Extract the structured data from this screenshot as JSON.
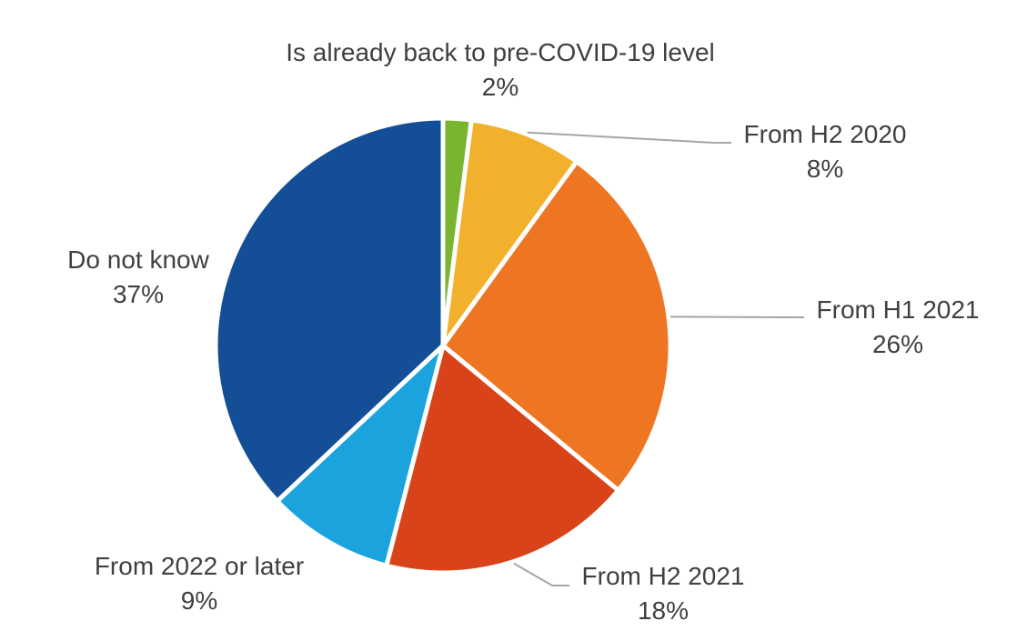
{
  "chart_data": {
    "type": "pie",
    "title": "",
    "start_angle_deg": 0,
    "direction": "clockwise",
    "slices": [
      {
        "label": "Is already back to pre-COVID-19 level",
        "value": 2,
        "value_label": "2%",
        "color": "#7AB52F"
      },
      {
        "label": "From H2 2020",
        "value": 8,
        "value_label": "8%",
        "color": "#F2B12C"
      },
      {
        "label": "From H1 2021",
        "value": 26,
        "value_label": "26%",
        "color": "#EE7623"
      },
      {
        "label": "From H2 2021",
        "value": 18,
        "value_label": "18%",
        "color": "#D9431A"
      },
      {
        "label": "From 2022 or later",
        "value": 9,
        "value_label": "9%",
        "color": "#1BA3DE"
      },
      {
        "label": "Do not know",
        "value": 37,
        "value_label": "37%",
        "color": "#134E96"
      }
    ],
    "leader_line_color": "#A6A6A6",
    "label_color": "#404040"
  }
}
